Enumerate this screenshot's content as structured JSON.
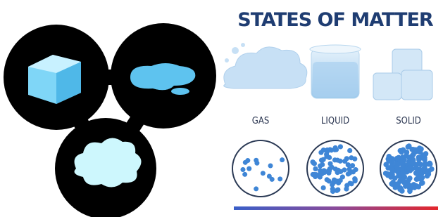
{
  "title": "STATES OF MATTER",
  "states": [
    {
      "label": "GAS"
    },
    {
      "label": "LIQUID"
    },
    {
      "label": "SOLID"
    }
  ]
}
